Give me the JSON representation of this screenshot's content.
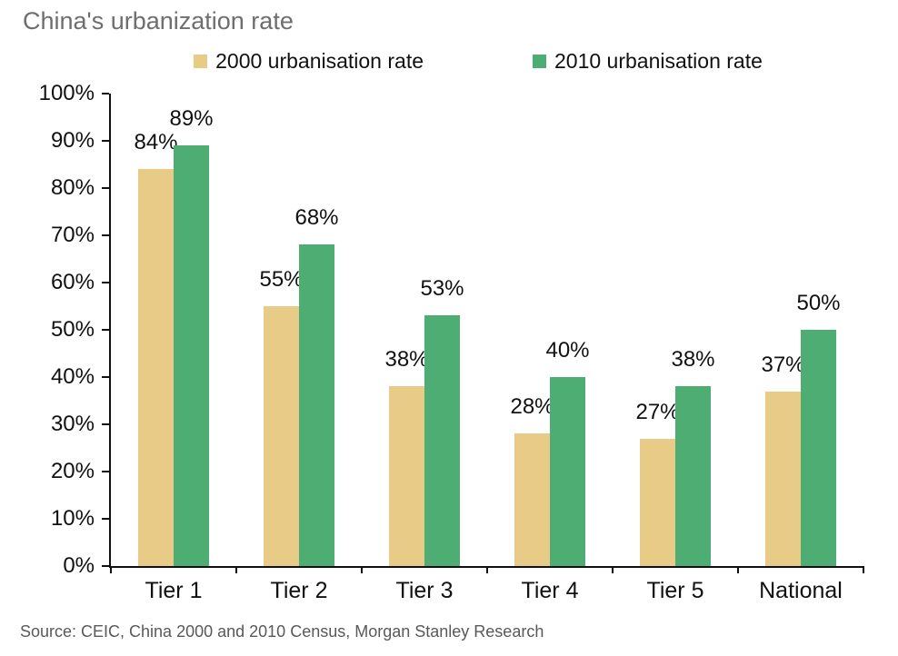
{
  "title": "China's urbanization rate",
  "source": "Source: CEIC, China 2000 and 2010 Census, Morgan Stanley Research",
  "colors": {
    "series_2000": "#E8CB86",
    "series_2010": "#4DAD73",
    "title_text": "#6E6E6E",
    "source_text": "#595959",
    "axis": "#111111",
    "background": "#FFFFFF"
  },
  "chart_data": {
    "type": "bar",
    "title": "China's urbanization rate",
    "categories": [
      "Tier 1",
      "Tier 2",
      "Tier 3",
      "Tier 4",
      "Tier 5",
      "National"
    ],
    "series": [
      {
        "name": "2000 urbanisation rate",
        "color": "#E8CB86",
        "values": [
          84,
          55,
          38,
          28,
          27,
          37
        ],
        "labels": [
          "84%",
          "55%",
          "38%",
          "28%",
          "27%",
          "37%"
        ]
      },
      {
        "name": "2010 urbanisation rate",
        "color": "#4DAD73",
        "values": [
          89,
          68,
          53,
          40,
          38,
          50
        ],
        "labels": [
          "89%",
          "68%",
          "53%",
          "40%",
          "38%",
          "50%"
        ]
      }
    ],
    "xlabel": "",
    "ylabel": "",
    "y_axis": {
      "min": 0,
      "max": 100,
      "step": 10,
      "tick_labels": [
        "0%",
        "10%",
        "20%",
        "30%",
        "40%",
        "50%",
        "60%",
        "70%",
        "80%",
        "90%",
        "100%"
      ]
    },
    "legend_position": "top",
    "grid": false,
    "data_labels": true
  }
}
